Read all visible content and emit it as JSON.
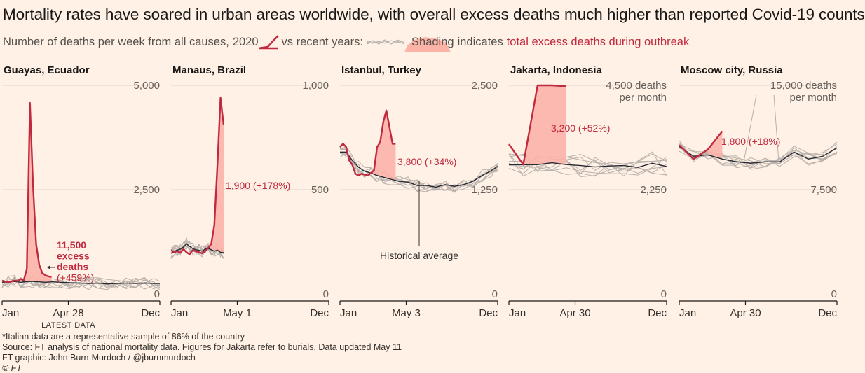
{
  "header": {
    "title": "Mortality rates have soared in urban areas worldwide, with overall excess deaths much higher than reported Covid-19 counts",
    "subtitle_part1": "Number of deaths per week from all causes,",
    "subtitle_2020": "2020",
    "subtitle_part2": "vs recent years:",
    "subtitle_shading": "Shading",
    "subtitle_part3": "indicates",
    "subtitle_excess": "total excess deaths during outbreak"
  },
  "colors": {
    "background": "#fff1e5",
    "line_2020": "#c1293e",
    "shading": "#fcb3a8",
    "history": "#b8b0aa",
    "average": "#262a33"
  },
  "footer": {
    "note": "*Italian data are a representative sample of 86% of the country",
    "source": "Source: FT analysis of national mortality data. Figures for Jakarta refer to burials. Data updated May 11",
    "credit": "FT graphic: John Burn-Murdoch / @jburnmurdoch",
    "copyright": "© FT"
  },
  "chart_data": [
    {
      "type": "line",
      "title": "Guayas, Ecuador",
      "ylim": [
        0,
        5000
      ],
      "yticks": [
        "5,000",
        "2,500",
        "0"
      ],
      "xticks": [
        "Jan",
        "Apr 28",
        "Dec"
      ],
      "latest_label": "LATEST DATA",
      "annotation_lines": [
        "11,500",
        "excess",
        "deaths",
        "(+459%)"
      ],
      "series": [
        {
          "x": [
            1,
            2,
            3,
            4,
            5,
            6,
            7,
            8,
            9,
            10,
            11,
            12,
            13,
            14,
            15,
            16,
            17
          ],
          "values": [
            320,
            300,
            280,
            300,
            320,
            310,
            360,
            330,
            600,
            4580,
            2600,
            1200,
            700,
            500,
            450,
            420,
            410
          ]
        }
      ],
      "baseline": {
        "x": [
          1,
          3,
          5,
          7,
          9,
          11,
          13,
          15,
          17,
          20,
          23,
          26,
          29,
          32,
          35,
          38,
          41,
          44,
          47,
          50,
          52
        ],
        "values": [
          280,
          290,
          300,
          280,
          300,
          300,
          290,
          280,
          290,
          280,
          270,
          260,
          250,
          260,
          240,
          250,
          260,
          250,
          260,
          250,
          250
        ]
      }
    },
    {
      "type": "line",
      "title": "Manaus, Brazil",
      "ylim": [
        0,
        1000
      ],
      "yticks": [
        "1,000",
        "500",
        "0"
      ],
      "xticks": [
        "Jan",
        "May 1",
        "Dec"
      ],
      "annotation": "1,900 (+178%)",
      "series": [
        {
          "x": [
            1,
            2,
            3,
            4,
            5,
            6,
            7,
            8,
            9,
            10,
            11,
            12,
            13,
            14,
            15,
            16,
            17,
            18
          ],
          "values": [
            210,
            200,
            205,
            198,
            215,
            200,
            190,
            210,
            205,
            200,
            195,
            205,
            220,
            240,
            330,
            620,
            940,
            810
          ]
        }
      ],
      "baseline": {
        "x": [
          1,
          2,
          3,
          4,
          5,
          6,
          7,
          8,
          9,
          10,
          11,
          12,
          13,
          14,
          15,
          16,
          17,
          18
        ],
        "values": [
          195,
          205,
          210,
          215,
          225,
          240,
          228,
          218,
          212,
          210,
          205,
          215,
          218,
          212,
          205,
          210,
          200,
          198
        ]
      }
    },
    {
      "type": "line",
      "title": "Istanbul, Turkey",
      "ylim": [
        0,
        2500
      ],
      "yticks": [
        "2,500",
        "1,250",
        "0"
      ],
      "xticks": [
        "Jan",
        "May 3",
        "Dec"
      ],
      "annotation": "3,800 (+34%)",
      "baseline_label": "Historical average",
      "series": [
        {
          "x": [
            1,
            2,
            3,
            4,
            5,
            6,
            7,
            8,
            9,
            10,
            11,
            12,
            13,
            14,
            15,
            16,
            17,
            18,
            19
          ],
          "values": [
            1760,
            1800,
            1760,
            1600,
            1550,
            1440,
            1420,
            1440,
            1430,
            1420,
            1450,
            1480,
            1760,
            1820,
            2060,
            2200,
            2000,
            1800,
            1800
          ]
        }
      ],
      "baseline": {
        "x": [
          1,
          3,
          5,
          7,
          9,
          11,
          13,
          15,
          17,
          20,
          23,
          26,
          29,
          32,
          35,
          38,
          41,
          44,
          47,
          50,
          52
        ],
        "values": [
          1700,
          1700,
          1600,
          1520,
          1470,
          1450,
          1420,
          1400,
          1380,
          1350,
          1340,
          1300,
          1300,
          1280,
          1310,
          1290,
          1310,
          1350,
          1420,
          1480,
          1530
        ]
      }
    },
    {
      "type": "line",
      "title": "Jakarta, Indonesia",
      "ylim": [
        0,
        4500
      ],
      "yticks": [
        "4,500 deaths",
        "2,250",
        "0"
      ],
      "ytick_unit": "per month",
      "xticks": [
        "Jan",
        "Apr 30",
        "Dec"
      ],
      "annotation": "3,200 (+52%)",
      "series": [
        {
          "x": [
            1,
            2,
            3,
            4,
            5
          ],
          "values": [
            3230,
            2790,
            4500,
            4500,
            4480
          ]
        }
      ],
      "baseline": {
        "x": [
          1,
          2,
          3,
          4,
          5,
          6,
          7,
          8,
          9,
          10,
          11,
          12
        ],
        "values": [
          2790,
          2790,
          2790,
          2830,
          2790,
          2770,
          2740,
          2760,
          2770,
          2730,
          2820,
          2750
        ]
      }
    },
    {
      "type": "line",
      "title": "Moscow city, Russia",
      "ylim": [
        0,
        15000
      ],
      "yticks": [
        "15,000 deaths",
        "7,500",
        "0"
      ],
      "ytick_unit": "per month",
      "xticks": [
        "Jan",
        "Apr 30",
        "Dec"
      ],
      "annotation": "1,800 (+18%)",
      "series": [
        {
          "x": [
            1,
            2,
            3,
            4
          ],
          "values": [
            10700,
            9700,
            10400,
            11700
          ]
        }
      ],
      "baseline": {
        "x": [
          1,
          2,
          3,
          4,
          5,
          6,
          7,
          8,
          9,
          10,
          11,
          12
        ],
        "values": [
          10600,
          9900,
          10000,
          9700,
          9500,
          9400,
          9500,
          9500,
          10200,
          9700,
          9900,
          10500
        ]
      }
    }
  ]
}
